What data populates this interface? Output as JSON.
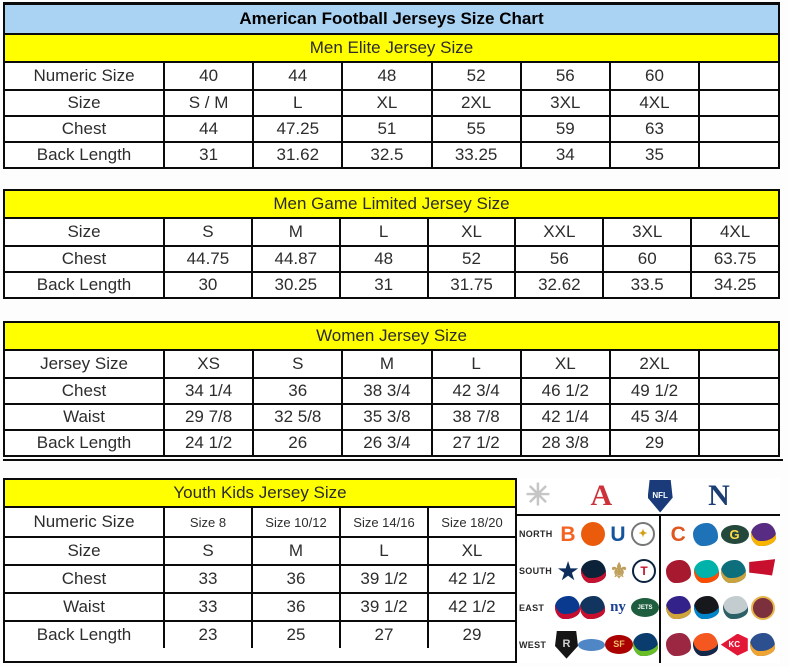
{
  "title": "American Football Jerseys Size Chart",
  "colors": {
    "title_bg": "#a9d2f3",
    "section_header_bg": "#ffff00",
    "border": "#0a0a0a",
    "afc_red": "#cd323b",
    "nfc_blue": "#1c3e74"
  },
  "tables": [
    {
      "id": "men-elite",
      "header": "Men Elite Jersey Size",
      "trailing_empty_col": true,
      "rows": [
        {
          "label": "Numeric Size",
          "cells": [
            "40",
            "44",
            "48",
            "52",
            "56",
            "60"
          ]
        },
        {
          "label": "Size",
          "cells": [
            "S / M",
            "L",
            "XL",
            "2XL",
            "3XL",
            "4XL"
          ]
        },
        {
          "label": "Chest",
          "cells": [
            "44",
            "47.25",
            "51",
            "55",
            "59",
            "63"
          ]
        },
        {
          "label": "Back Length",
          "cells": [
            "31",
            "31.62",
            "32.5",
            "33.25",
            "34",
            "35"
          ]
        }
      ]
    },
    {
      "id": "men-game-limited",
      "header": "Men Game Limited Jersey Size",
      "trailing_empty_col": false,
      "rows": [
        {
          "label": "Size",
          "cells": [
            "S",
            "M",
            "L",
            "XL",
            "XXL",
            "3XL",
            "4XL"
          ]
        },
        {
          "label": "Chest",
          "cells": [
            "44.75",
            "44.87",
            "48",
            "52",
            "56",
            "60",
            "63.75"
          ]
        },
        {
          "label": "Back Length",
          "cells": [
            "30",
            "30.25",
            "31",
            "31.75",
            "32.62",
            "33.5",
            "34.25"
          ]
        }
      ]
    },
    {
      "id": "women",
      "header": "Women Jersey Size",
      "trailing_empty_col": true,
      "rows": [
        {
          "label": "Jersey Size",
          "cells": [
            "XS",
            "S",
            "M",
            "L",
            "XL",
            "2XL"
          ]
        },
        {
          "label": "Chest",
          "cells": [
            "34 1/4",
            "36",
            "38 3/4",
            "42 3/4",
            "46 1/2",
            "49 1/2"
          ]
        },
        {
          "label": "Waist",
          "cells": [
            "29 7/8",
            "32 5/8",
            "35 3/8",
            "38 7/8",
            "42 1/4",
            "45 3/4"
          ]
        },
        {
          "label": "Back Length",
          "cells": [
            "24 1/2",
            "26",
            "26 3/4",
            "27 1/2",
            "28 3/8",
            "29"
          ]
        }
      ]
    },
    {
      "id": "youth-kids",
      "header": "Youth Kids Jersey Size",
      "trailing_empty_col": false,
      "rows": [
        {
          "label": "Numeric Size",
          "cells": [
            "Size 8",
            "Size 10/12",
            "Size 14/16",
            "Size 18/20"
          ],
          "small": true
        },
        {
          "label": "Size",
          "cells": [
            "S",
            "M",
            "L",
            "XL"
          ]
        },
        {
          "label": "Chest",
          "cells": [
            "33",
            "36",
            "39 1/2",
            "42 1/2"
          ]
        },
        {
          "label": "Waist",
          "cells": [
            "33",
            "36",
            "39 1/2",
            "42 1/2"
          ]
        },
        {
          "label": "Back Length",
          "cells": [
            "23",
            "25",
            "27",
            "29"
          ]
        }
      ]
    }
  ],
  "nfl_panel": {
    "header_logos": [
      {
        "team": "starburst",
        "shape": "text",
        "glyph": "✳",
        "fg": "#c6c6c6",
        "fs": 30
      },
      {
        "team": "afc",
        "shape": "text",
        "glyph": "A",
        "fg": "#cd323b",
        "fs": 30,
        "serif": true
      },
      {
        "team": "nfl-shield",
        "shape": "shield",
        "bg": "#1a3a7a",
        "glyph": "NFL",
        "fg": "#ffffff",
        "fs": 8
      },
      {
        "team": "nfc",
        "shape": "text",
        "glyph": "N",
        "fg": "#1c3e74",
        "fs": 30,
        "serif": true
      }
    ],
    "divisions": [
      {
        "label": "NORTH",
        "afc": [
          {
            "team": "bengals",
            "shape": "text",
            "glyph": "B",
            "fg": "#f36321",
            "fs": 21
          },
          {
            "team": "browns",
            "shape": "circle",
            "bg": "#ea5b0c"
          },
          {
            "team": "colts",
            "shape": "text",
            "glyph": "U",
            "fg": "#15549e",
            "fs": 21
          },
          {
            "team": "steelers",
            "shape": "circle",
            "bg": "#ffffff",
            "border": "#777777",
            "glyph": "✦",
            "fg": "#d4a017",
            "fs": 11
          }
        ],
        "nfc": [
          {
            "team": "bears",
            "shape": "text",
            "glyph": "C",
            "fg": "#e0561f",
            "fs": 21
          },
          {
            "team": "lions",
            "shape": "blob",
            "bg": "#1d72b8"
          },
          {
            "team": "packers",
            "shape": "oval",
            "bg": "#24483b",
            "glyph": "G",
            "fg": "#ffd94a",
            "fs": 13
          },
          {
            "team": "vikings",
            "shape": "blob",
            "bg": "#582c83",
            "accent": "#f7b500"
          }
        ]
      },
      {
        "label": "SOUTH",
        "afc": [
          {
            "team": "cowboys-star",
            "shape": "text",
            "glyph": "★",
            "fg": "#0d2e5c",
            "fs": 23
          },
          {
            "team": "texans",
            "shape": "blob",
            "bg": "#0b2239",
            "accent": "#c41230"
          },
          {
            "team": "saints",
            "shape": "text",
            "glyph": "⚜",
            "fg": "#bfa05a",
            "fs": 21
          },
          {
            "team": "titans",
            "shape": "circle",
            "bg": "#ffffff",
            "border": "#0c2340",
            "glyph": "T",
            "fg": "#c8102e",
            "fs": 12
          }
        ],
        "nfc": [
          {
            "team": "falcons",
            "shape": "blob",
            "bg": "#a6192e"
          },
          {
            "team": "dolphins",
            "shape": "blob",
            "bg": "#00b2a9",
            "accent": "#fc4c02"
          },
          {
            "team": "jaguars",
            "shape": "blob",
            "bg": "#0d6e7c",
            "accent": "#caa240"
          },
          {
            "team": "buccaneers",
            "shape": "flag",
            "bg": "#c8102e"
          }
        ]
      },
      {
        "label": "EAST",
        "afc": [
          {
            "team": "bills",
            "shape": "blob",
            "bg": "#0a3a8f",
            "accent": "#c60c30"
          },
          {
            "team": "patriots",
            "shape": "blob",
            "bg": "#12355f",
            "accent": "#c8102e"
          },
          {
            "team": "giants",
            "shape": "text",
            "glyph": "ny",
            "fg": "#1b3f92",
            "fs": 15,
            "serif": true
          },
          {
            "team": "jets",
            "shape": "oval",
            "bg": "#1e5e3e",
            "glyph": "JETS",
            "fg": "#ffffff",
            "fs": 6
          }
        ],
        "nfc": [
          {
            "team": "ravens",
            "shape": "blob",
            "bg": "#332289",
            "accent": "#d0a438"
          },
          {
            "team": "panthers",
            "shape": "blob",
            "bg": "#17181c",
            "accent": "#0085ca"
          },
          {
            "team": "eagles",
            "shape": "blob",
            "bg": "#c3ccce",
            "accent": "#2c5f66"
          },
          {
            "team": "redskins",
            "shape": "circle",
            "bg": "#7c303d",
            "border": "#e8b54a"
          }
        ]
      },
      {
        "label": "WEST",
        "afc": [
          {
            "team": "raiders",
            "shape": "shield",
            "bg": "#151515",
            "glyph": "R",
            "fg": "#cfcfcf",
            "fs": 11
          },
          {
            "team": "chargers",
            "shape": "arc",
            "bg": "#4f86c6"
          },
          {
            "team": "49ers",
            "shape": "oval",
            "bg": "#aa0000",
            "glyph": "SF",
            "fg": "#f0c06a",
            "fs": 9
          },
          {
            "team": "seahawks",
            "shape": "blob",
            "bg": "#0b3c6e",
            "accent": "#69be28"
          }
        ],
        "nfc": [
          {
            "team": "cardinals",
            "shape": "blob",
            "bg": "#9b2743"
          },
          {
            "team": "broncos",
            "shape": "blob",
            "bg": "#f4571f",
            "accent": "#11294a"
          },
          {
            "team": "chiefs",
            "shape": "arrow",
            "bg": "#e31837",
            "glyph": "KC",
            "fg": "#ffffff",
            "fs": 8
          },
          {
            "team": "rams",
            "shape": "blob",
            "bg": "#2c4f8f",
            "accent": "#f0a431"
          }
        ]
      }
    ]
  }
}
